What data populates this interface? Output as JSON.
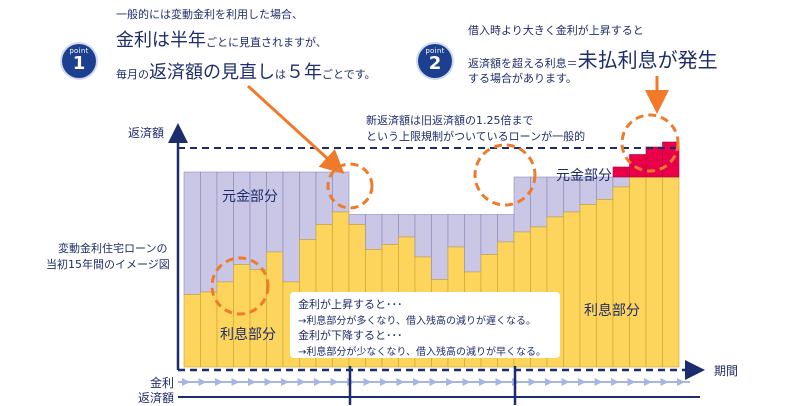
{
  "title_fragment": "",
  "point1": {
    "badge_label": "point",
    "badge_number": "1",
    "line1": "一般的には変動金利を利用した場合、",
    "line2_big": "金利は半年",
    "line2_small": "ごとに見直されますが、",
    "line3_small": "毎月の",
    "line3_big": "返済額の見直し",
    "line3_small2": "は",
    "line3_big2": "５年",
    "line3_small3": "ごとです。"
  },
  "point2": {
    "badge_label": "point",
    "badge_number": "2",
    "line1": "借入時より大きく金利が上昇すると",
    "line2_small": "返済額を超える利息＝",
    "line2_big": "未払利息が発生",
    "line3": "する場合があります。"
  },
  "annotation_cap": {
    "line1": "新返済額は旧返済額の1.25倍まで",
    "line2": "という上限規制がついているローンが一般的"
  },
  "axes": {
    "y_label": "返済額",
    "x_label": "期間"
  },
  "side_caption": {
    "line1": "変動金利住宅ローンの",
    "line2": "当初15年間のイメージ図"
  },
  "region_labels": {
    "principal_left": "元金部分",
    "principal_right": "元金部分",
    "interest_left": "利息部分",
    "interest_right": "利息部分"
  },
  "info_box": {
    "line1": "金利が上昇すると･･･",
    "line2": "→利息部分が多くなり、借入残高の減りが遅くなる。",
    "line3": "金利が下降すると･･･",
    "line4": "→利息部分が少なくなり、借入残高の減りが早くなる。"
  },
  "timeline": {
    "rate_label": "金利",
    "payment_label": "返済額"
  },
  "colors": {
    "principal": "#c9c6e6",
    "interest": "#fdd45c",
    "unpaid": "#e8004a",
    "axis": "#1c2d6e",
    "highlight": "#f07a2a",
    "arrow_light": "#a7b6e0"
  },
  "chart_data": {
    "type": "bar",
    "description_units": "relative payment levels (0-100 scale)",
    "periods": 30,
    "payment_levels": [
      {
        "from": 1,
        "to": 10,
        "total": 78
      },
      {
        "from": 11,
        "to": 20,
        "total": 61
      },
      {
        "from": 21,
        "to": 27,
        "total": 76
      },
      {
        "from": 28,
        "to": 30,
        "total": 76
      }
    ],
    "interest_values": [
      29,
      30,
      34,
      41,
      39,
      46,
      34,
      51,
      57,
      62,
      57,
      47,
      49,
      52,
      44,
      35,
      48,
      38,
      45,
      50,
      54,
      56,
      60,
      62,
      65,
      67,
      72,
      78,
      82,
      86
    ],
    "unpaid_interest_values": [
      0,
      0,
      0,
      0,
      0,
      0,
      0,
      0,
      0,
      0,
      0,
      0,
      0,
      0,
      0,
      0,
      0,
      0,
      0,
      0,
      0,
      0,
      0,
      0,
      0,
      0,
      4,
      9,
      12,
      14
    ]
  }
}
